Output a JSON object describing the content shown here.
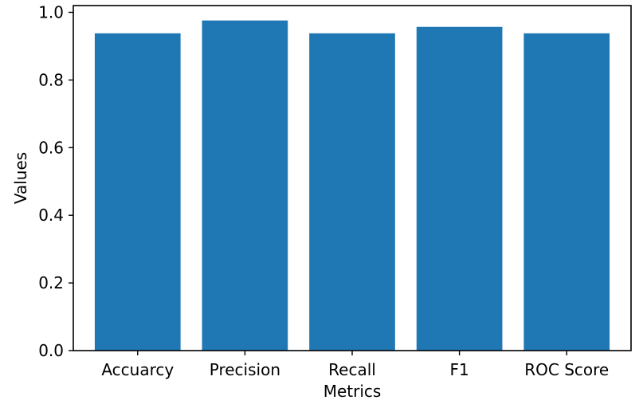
{
  "chart_data": {
    "type": "bar",
    "title": "",
    "xlabel": "Metrics",
    "ylabel": "Values",
    "categories": [
      "Accuarcy",
      "Precision",
      "Recall",
      "F1",
      "ROC Score"
    ],
    "values": [
      0.938,
      0.976,
      0.938,
      0.957,
      0.938
    ],
    "ylim": [
      0,
      1.02
    ],
    "yticks": [
      "0.0",
      "0.2",
      "0.4",
      "0.6",
      "0.8",
      "1.0"
    ],
    "grid": false,
    "bar_color": "#1f77b4"
  }
}
